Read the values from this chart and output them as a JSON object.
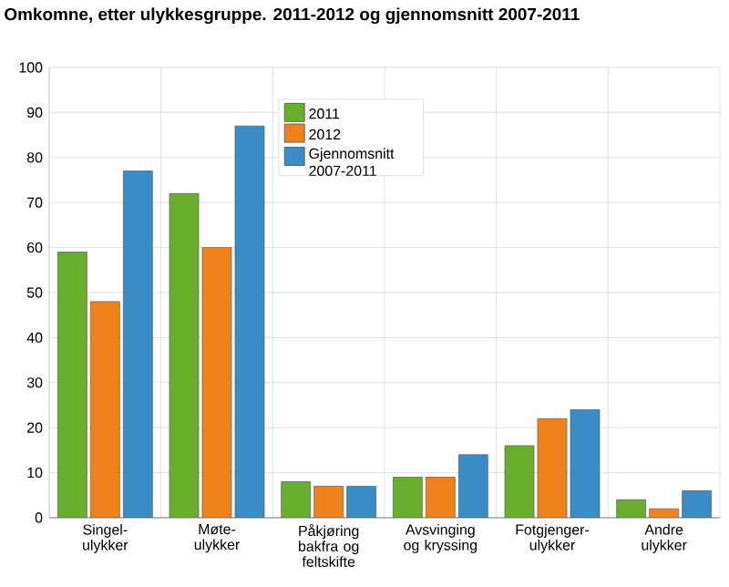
{
  "chart_data": {
    "type": "bar",
    "title": "Omkomne, etter ulykkesgruppe. 2011-2012 og gjennomsnitt 2007-2011",
    "categories": [
      "Singel- ulykker",
      "Møte- ulykker",
      "Påkjøring bakfra og feltskifte",
      "Avsvinging og kryssing",
      "Fotgjenger- ulykker",
      "Andre ulykker"
    ],
    "series": [
      {
        "name": "2011",
        "color": "#6aae2e",
        "values": [
          59,
          72,
          8,
          9,
          16,
          4
        ]
      },
      {
        "name": "2012",
        "color": "#f0821e",
        "values": [
          48,
          60,
          7,
          9,
          22,
          2
        ]
      },
      {
        "name": "Gjennomsnitt 2007-2011",
        "color": "#398cc4",
        "values": [
          77,
          87,
          7,
          14,
          24,
          6
        ]
      }
    ],
    "ylim": [
      0,
      100
    ],
    "yticks": [
      0,
      10,
      20,
      30,
      40,
      50,
      60,
      70,
      80,
      90,
      100
    ],
    "grid": true,
    "legend": "top"
  }
}
